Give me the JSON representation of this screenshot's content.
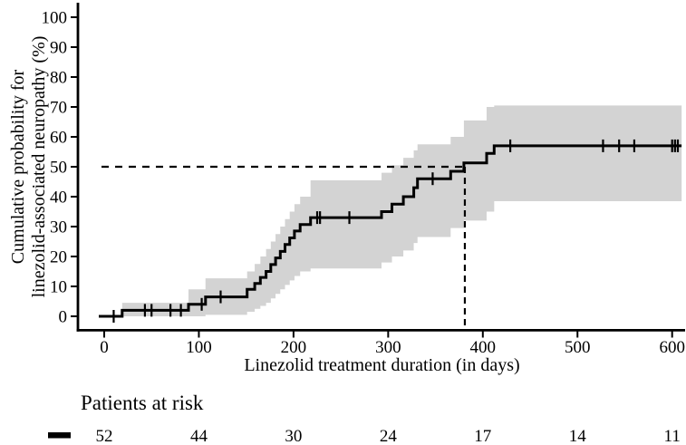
{
  "labels": {
    "y_axis_line1": "Cumulative probability for",
    "y_axis_line2": "linezolid-associated neuropathy (%)",
    "x_axis": "Linezolid treatment duration (in days)",
    "risk_title": "Patients at risk"
  },
  "colors": {
    "curve": "#000000",
    "ci_band": "#d3d3d3",
    "reference_line": "#000000",
    "text": "#000000",
    "background": "#ffffff"
  },
  "chart_data": {
    "type": "line",
    "subtype": "kaplan-meier cumulative incidence step curve with 95% CI band",
    "title": "",
    "xlabel": "Linezolid treatment duration (in days)",
    "ylabel": "Cumulative probability for linezolid-associated neuropathy (%)",
    "xlim": [
      0,
      610
    ],
    "ylim": [
      0,
      100
    ],
    "x_ticks": [
      0,
      100,
      200,
      300,
      400,
      500,
      600
    ],
    "y_ticks": [
      0,
      10,
      20,
      30,
      40,
      50,
      60,
      70,
      80,
      90,
      100
    ],
    "grid": false,
    "legend_position": "none",
    "series": [
      {
        "name": "Cumulative probability of linezolid-associated neuropathy (%)",
        "step": true,
        "points": [
          [
            0,
            0
          ],
          [
            19,
            2
          ],
          [
            89,
            4
          ],
          [
            107,
            6.5
          ],
          [
            151,
            9
          ],
          [
            159,
            11
          ],
          [
            165,
            13
          ],
          [
            171,
            15
          ],
          [
            176,
            17.3
          ],
          [
            181,
            19.5
          ],
          [
            186,
            21.7
          ],
          [
            191,
            24
          ],
          [
            196,
            26.2
          ],
          [
            201,
            28.5
          ],
          [
            207,
            30.7
          ],
          [
            218,
            33
          ],
          [
            293,
            35
          ],
          [
            304,
            37.5
          ],
          [
            316,
            40
          ],
          [
            327,
            43
          ],
          [
            331,
            46
          ],
          [
            366,
            48.5
          ],
          [
            380,
            51.3
          ],
          [
            404,
            54.5
          ],
          [
            412,
            57
          ],
          [
            610,
            57
          ]
        ]
      }
    ],
    "censor_marks": [
      [
        10,
        0
      ],
      [
        43,
        2
      ],
      [
        50,
        2
      ],
      [
        70,
        2
      ],
      [
        81,
        2
      ],
      [
        103,
        4
      ],
      [
        123,
        6.5
      ],
      [
        225,
        33
      ],
      [
        228,
        33
      ],
      [
        259,
        33
      ],
      [
        347,
        46
      ],
      [
        429,
        57
      ],
      [
        527,
        57
      ],
      [
        544,
        57
      ],
      [
        560,
        57
      ],
      [
        600,
        57
      ],
      [
        603,
        57
      ],
      [
        606,
        57
      ]
    ],
    "confidence_band": [
      {
        "day": 19,
        "lower": 0,
        "upper": 4.5
      },
      {
        "day": 89,
        "lower": 0,
        "upper": 9
      },
      {
        "day": 107,
        "lower": 0.5,
        "upper": 12.7
      },
      {
        "day": 151,
        "lower": 1.5,
        "upper": 15
      },
      {
        "day": 159,
        "lower": 2.5,
        "upper": 17.5
      },
      {
        "day": 165,
        "lower": 3.5,
        "upper": 20
      },
      {
        "day": 171,
        "lower": 4.5,
        "upper": 22.5
      },
      {
        "day": 176,
        "lower": 6,
        "upper": 25
      },
      {
        "day": 181,
        "lower": 7.5,
        "upper": 27.5
      },
      {
        "day": 186,
        "lower": 9,
        "upper": 30
      },
      {
        "day": 191,
        "lower": 10.5,
        "upper": 32.5
      },
      {
        "day": 196,
        "lower": 12,
        "upper": 35
      },
      {
        "day": 201,
        "lower": 13.5,
        "upper": 37.5
      },
      {
        "day": 207,
        "lower": 15,
        "upper": 40
      },
      {
        "day": 218,
        "lower": 16,
        "upper": 45.5
      },
      {
        "day": 293,
        "lower": 18,
        "upper": 48
      },
      {
        "day": 304,
        "lower": 20,
        "upper": 50.5
      },
      {
        "day": 316,
        "lower": 22,
        "upper": 53
      },
      {
        "day": 327,
        "lower": 24.5,
        "upper": 55.5
      },
      {
        "day": 331,
        "lower": 26.5,
        "upper": 57.5
      },
      {
        "day": 366,
        "lower": 29.5,
        "upper": 60
      },
      {
        "day": 380,
        "lower": 32,
        "upper": 65.5
      },
      {
        "day": 404,
        "lower": 35,
        "upper": 70
      },
      {
        "day": 412,
        "lower": 38.5,
        "upper": 70.5
      },
      {
        "day": 610,
        "lower": 38.5,
        "upper": 70.5
      }
    ],
    "reference_lines": {
      "horizontal_at_pct": 50,
      "vertical_at_day": 381,
      "style": "dashed",
      "meaning": "median time to event"
    },
    "risk_table": {
      "title": "Patients at risk",
      "days": [
        0,
        100,
        200,
        300,
        400,
        500,
        600
      ],
      "counts": [
        52,
        44,
        30,
        24,
        17,
        14,
        11
      ]
    }
  }
}
